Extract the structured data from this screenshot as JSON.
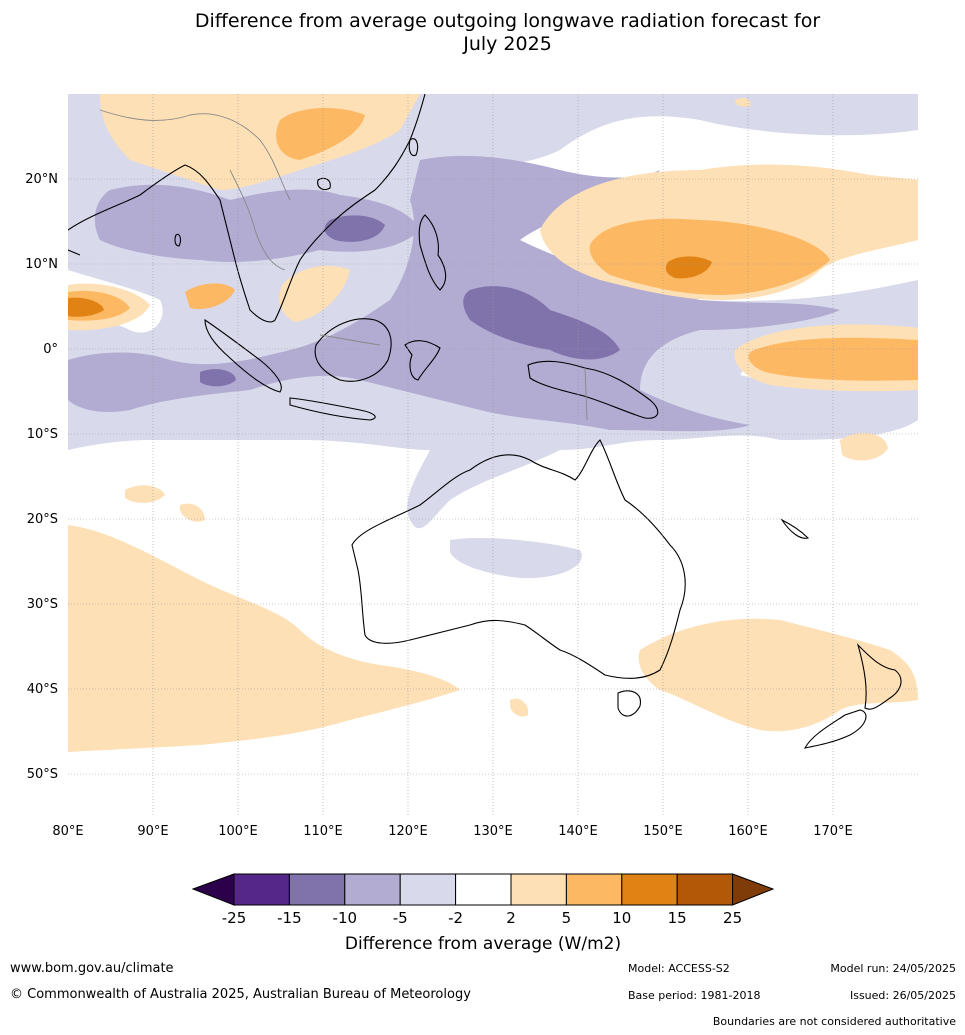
{
  "title_line1": "Difference from average outgoing longwave radiation forecast for",
  "title_line2": "July 2025",
  "lat_labels": [
    "20°N",
    "10°N",
    "0°",
    "10°S",
    "20°S",
    "30°S",
    "40°S",
    "50°S"
  ],
  "lon_labels": [
    "80°E",
    "90°E",
    "100°E",
    "110°E",
    "120°E",
    "130°E",
    "140°E",
    "150°E",
    "160°E",
    "170°E"
  ],
  "colorbar": {
    "ticks": [
      "-25",
      "-15",
      "-10",
      "-5",
      "-2",
      "2",
      "5",
      "10",
      "15",
      "25"
    ],
    "colors": [
      "#2d004b",
      "#542788",
      "#8073ac",
      "#b2abd2",
      "#d8daeb",
      "#ffffff",
      "#fee0b6",
      "#fdb863",
      "#e08214",
      "#b35806",
      "#7f3b08"
    ],
    "label": "Difference from average (W/m2)"
  },
  "footer": {
    "website": "www.bom.gov.au/climate",
    "copyright": "© Commonwealth of Australia 2025, Australian Bureau of Meteorology",
    "model": "Model: ACCESS-S2",
    "base_period": "Base period: 1981-2018",
    "model_run": "Model run: 24/05/2025",
    "issued": "Issued: 26/05/2025",
    "disclaimer": "Boundaries are not considered authoritative"
  }
}
